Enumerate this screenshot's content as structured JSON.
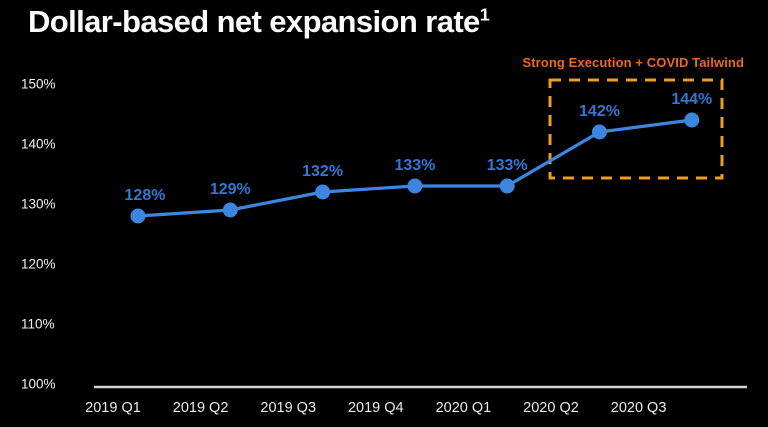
{
  "title": {
    "text": "Dollar-based net expansion rate",
    "superscript": "1"
  },
  "annotation": {
    "text": "Strong Execution + COVID Tailwind"
  },
  "chart_data": {
    "type": "line",
    "title": "Dollar-based net expansion rate",
    "xlabel": "",
    "ylabel": "",
    "categories": [
      "2019 Q1",
      "2019 Q2",
      "2019 Q3",
      "2019 Q4",
      "2020 Q1",
      "2020 Q2",
      "2020 Q3"
    ],
    "values": [
      128,
      129,
      132,
      133,
      133,
      142,
      144
    ],
    "point_labels": [
      "128%",
      "129%",
      "132%",
      "133%",
      "133%",
      "142%",
      "144%"
    ],
    "ylim": [
      100,
      150
    ],
    "ytick_values": [
      150,
      140,
      130,
      120,
      110,
      100
    ],
    "ytick_labels": [
      "150%",
      "140%",
      "130%",
      "120%",
      "110%",
      "100%"
    ],
    "grid": false,
    "legend": "none",
    "highlight": {
      "label": "Strong Execution + COVID Tailwind",
      "categories": [
        "2020 Q2",
        "2020 Q3"
      ]
    },
    "colors": {
      "background": "#000000",
      "title_text": "#fcfcfc",
      "line": "#3d86e0",
      "point": "#3d86e0",
      "value_label": "#3277d2",
      "annotation_text": "#ec6a1e",
      "highlight_box": "#ee9d20",
      "axis_line": "#d2d2d2",
      "ytick_text": "#f2f1ef",
      "xtick_text": "#eeece9"
    }
  }
}
